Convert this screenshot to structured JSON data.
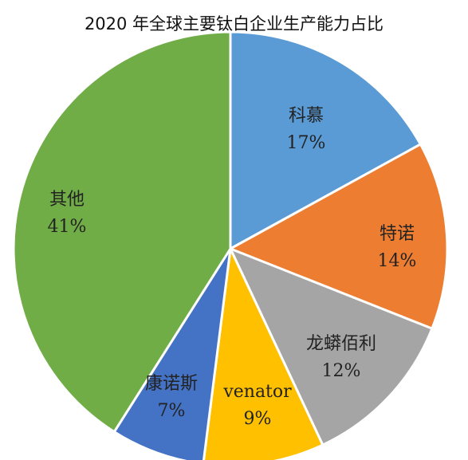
{
  "chart_data": {
    "type": "pie",
    "title": "2020 年全球主要钛白企业生产能力占比",
    "slices": [
      {
        "label": "科慕",
        "value": 17,
        "value_label": "17%",
        "color": "#5b9bd5"
      },
      {
        "label": "特诺",
        "value": 14,
        "value_label": "14%",
        "color": "#ed7d31"
      },
      {
        "label": "龙蟒佰利",
        "value": 12,
        "value_label": "12%",
        "color": "#a5a5a5"
      },
      {
        "label": "venator",
        "value": 9,
        "value_label": "9%",
        "color": "#ffc000"
      },
      {
        "label": "康诺斯",
        "value": 7,
        "value_label": "7%",
        "color": "#4472c4"
      },
      {
        "label": "其他",
        "value": 41,
        "value_label": "41%",
        "color": "#70ad47"
      }
    ],
    "legend": "none",
    "start_angle": "12 o'clock",
    "direction": "clockwise"
  }
}
